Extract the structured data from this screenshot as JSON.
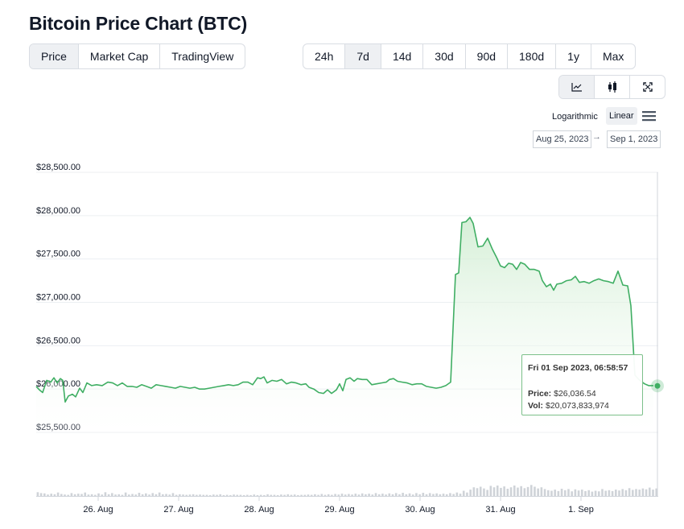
{
  "title": "Bitcoin Price Chart (BTC)",
  "data_tabs": [
    "Price",
    "Market Cap",
    "TradingView"
  ],
  "range_tabs": [
    "24h",
    "7d",
    "14d",
    "30d",
    "90d",
    "180d",
    "1y",
    "Max"
  ],
  "chart_type_buttons": [
    "line-chart-icon",
    "candlestick-icon",
    "fullscreen-icon"
  ],
  "scale": {
    "log_label": "Logarithmic",
    "linear_label": "Linear",
    "selected": "Linear"
  },
  "date_range": {
    "from": "Aug 25, 2023",
    "arrow": "→",
    "to": "Sep 1, 2023"
  },
  "tooltip": {
    "date": "Fri 01 Sep 2023, 06:58:57",
    "price_label": "Price:",
    "price_value": "$26,036.54",
    "vol_label": "Vol:",
    "vol_value": "$20,073,833,974"
  },
  "colors": {
    "line": "#3fae63",
    "fill_top": "#cdeccf",
    "accent_active": "#eef0f3"
  },
  "chart_data": {
    "type": "area",
    "title": "Bitcoin Price Chart (BTC)",
    "xlabel": "",
    "ylabel": "",
    "x_tick_labels": [
      "26. Aug",
      "27. Aug",
      "28. Aug",
      "29. Aug",
      "30. Aug",
      "31. Aug",
      "1. Sep"
    ],
    "y_tick_labels": [
      "$25,500.00",
      "$26,000.00",
      "$26,500.00",
      "$27,000.00",
      "$27,500.00",
      "$28,000.00",
      "$28,500.00"
    ],
    "ylim": [
      25500,
      28500
    ],
    "grid": true,
    "series": [
      {
        "values": [
          [
            25.23,
            26030
          ],
          [
            25.27,
            25990
          ],
          [
            25.31,
            25960
          ],
          [
            25.36,
            26100
          ],
          [
            25.41,
            26080
          ],
          [
            25.45,
            26130
          ],
          [
            25.49,
            26070
          ],
          [
            25.53,
            26120
          ],
          [
            25.56,
            26100
          ],
          [
            25.59,
            25850
          ],
          [
            25.63,
            25920
          ],
          [
            25.68,
            25940
          ],
          [
            25.72,
            25910
          ],
          [
            25.77,
            26010
          ],
          [
            25.81,
            25960
          ],
          [
            25.86,
            26070
          ],
          [
            25.92,
            26040
          ],
          [
            25.98,
            26050
          ],
          [
            26.05,
            26040
          ],
          [
            26.12,
            26080
          ],
          [
            26.18,
            26070
          ],
          [
            26.24,
            26040
          ],
          [
            26.3,
            26070
          ],
          [
            26.36,
            26030
          ],
          [
            26.42,
            26030
          ],
          [
            26.48,
            26020
          ],
          [
            26.54,
            26050
          ],
          [
            26.6,
            26030
          ],
          [
            26.66,
            26010
          ],
          [
            26.72,
            26050
          ],
          [
            26.78,
            26040
          ],
          [
            26.84,
            26030
          ],
          [
            26.9,
            26020
          ],
          [
            26.96,
            26010
          ],
          [
            27.02,
            26030
          ],
          [
            27.08,
            26020
          ],
          [
            27.14,
            26010
          ],
          [
            27.2,
            26020
          ],
          [
            27.26,
            26000
          ],
          [
            27.32,
            26000
          ],
          [
            27.38,
            26010
          ],
          [
            27.44,
            26020
          ],
          [
            27.5,
            26030
          ],
          [
            27.56,
            26040
          ],
          [
            27.62,
            26050
          ],
          [
            27.68,
            26040
          ],
          [
            27.74,
            26050
          ],
          [
            27.8,
            26080
          ],
          [
            27.86,
            26080
          ],
          [
            27.92,
            26050
          ],
          [
            27.98,
            26130
          ],
          [
            28.02,
            26120
          ],
          [
            28.06,
            26140
          ],
          [
            28.1,
            26070
          ],
          [
            28.16,
            26100
          ],
          [
            28.22,
            26090
          ],
          [
            28.28,
            26110
          ],
          [
            28.34,
            26060
          ],
          [
            28.4,
            26080
          ],
          [
            28.46,
            26070
          ],
          [
            28.52,
            26050
          ],
          [
            28.58,
            26060
          ],
          [
            28.62,
            26020
          ],
          [
            28.68,
            26000
          ],
          [
            28.74,
            25960
          ],
          [
            28.8,
            25950
          ],
          [
            28.85,
            25990
          ],
          [
            28.9,
            25950
          ],
          [
            28.96,
            25990
          ],
          [
            29.0,
            26060
          ],
          [
            29.04,
            25980
          ],
          [
            29.08,
            26110
          ],
          [
            29.13,
            26130
          ],
          [
            29.18,
            26090
          ],
          [
            29.22,
            26120
          ],
          [
            29.28,
            26110
          ],
          [
            29.34,
            26110
          ],
          [
            29.4,
            26050
          ],
          [
            29.46,
            26060
          ],
          [
            29.52,
            26070
          ],
          [
            29.58,
            26080
          ],
          [
            29.62,
            26110
          ],
          [
            29.67,
            26120
          ],
          [
            29.72,
            26090
          ],
          [
            29.78,
            26080
          ],
          [
            29.84,
            26070
          ],
          [
            29.9,
            26050
          ],
          [
            29.96,
            26060
          ],
          [
            30.02,
            26060
          ],
          [
            30.08,
            26030
          ],
          [
            30.14,
            26020
          ],
          [
            30.2,
            26010
          ],
          [
            30.26,
            26020
          ],
          [
            30.32,
            26040
          ],
          [
            30.38,
            26080
          ],
          [
            30.44,
            27320
          ],
          [
            30.48,
            27340
          ],
          [
            30.52,
            27920
          ],
          [
            30.57,
            27930
          ],
          [
            30.62,
            27980
          ],
          [
            30.66,
            27910
          ],
          [
            30.72,
            27640
          ],
          [
            30.78,
            27650
          ],
          [
            30.84,
            27740
          ],
          [
            30.9,
            27610
          ],
          [
            30.95,
            27520
          ],
          [
            31.0,
            27420
          ],
          [
            31.05,
            27400
          ],
          [
            31.1,
            27450
          ],
          [
            31.15,
            27440
          ],
          [
            31.2,
            27380
          ],
          [
            31.25,
            27460
          ],
          [
            31.3,
            27440
          ],
          [
            31.36,
            27380
          ],
          [
            31.42,
            27380
          ],
          [
            31.48,
            27360
          ],
          [
            31.52,
            27250
          ],
          [
            31.57,
            27180
          ],
          [
            31.62,
            27210
          ],
          [
            31.66,
            27140
          ],
          [
            31.7,
            27210
          ],
          [
            31.76,
            27220
          ],
          [
            31.82,
            27250
          ],
          [
            31.88,
            27260
          ],
          [
            31.93,
            27300
          ],
          [
            31.98,
            27230
          ],
          [
            32.04,
            27240
          ],
          [
            32.1,
            27220
          ],
          [
            32.16,
            27250
          ],
          [
            32.22,
            27270
          ],
          [
            32.28,
            27250
          ],
          [
            32.34,
            27240
          ],
          [
            32.4,
            27220
          ],
          [
            32.46,
            27360
          ],
          [
            32.52,
            27200
          ],
          [
            32.58,
            27190
          ],
          [
            32.62,
            26960
          ],
          [
            32.67,
            26160
          ],
          [
            32.73,
            26100
          ],
          [
            32.79,
            26060
          ],
          [
            32.84,
            26040
          ],
          [
            32.9,
            26040
          ]
        ]
      }
    ],
    "volume": [
      0.13,
      0.1,
      0.09,
      0.05,
      0.08,
      0.06,
      0.12,
      0.07,
      0.05,
      0.04,
      0.1,
      0.06,
      0.08,
      0.07,
      0.12,
      0.05,
      0.06,
      0.04,
      0.09,
      0.05,
      0.13,
      0.06,
      0.1,
      0.05,
      0.06,
      0.04,
      0.12,
      0.05,
      0.07,
      0.05,
      0.11,
      0.06,
      0.09,
      0.05,
      0.1,
      0.06,
      0.12,
      0.06,
      0.07,
      0.05,
      0.1,
      0.04,
      0.06,
      0.05,
      0.04,
      0.05,
      0.06,
      0.04,
      0.05,
      0.04,
      0.04,
      0.03,
      0.05,
      0.04,
      0.06,
      0.03,
      0.04,
      0.03,
      0.05,
      0.04,
      0.04,
      0.03,
      0.04,
      0.03,
      0.05,
      0.03,
      0.04,
      0.03,
      0.06,
      0.04,
      0.04,
      0.03,
      0.05,
      0.04,
      0.06,
      0.04,
      0.05,
      0.03,
      0.04,
      0.04,
      0.05,
      0.04,
      0.06,
      0.04,
      0.07,
      0.04,
      0.06,
      0.04,
      0.07,
      0.05,
      0.08,
      0.05,
      0.07,
      0.05,
      0.08,
      0.05,
      0.09,
      0.06,
      0.08,
      0.05,
      0.1,
      0.06,
      0.08,
      0.05,
      0.09,
      0.06,
      0.1,
      0.06,
      0.11,
      0.06,
      0.09,
      0.05,
      0.1,
      0.06,
      0.11,
      0.06,
      0.1,
      0.07,
      0.09,
      0.06,
      0.08,
      0.06,
      0.1,
      0.07,
      0.12,
      0.08,
      0.18,
      0.12,
      0.22,
      0.3,
      0.27,
      0.32,
      0.26,
      0.21,
      0.35,
      0.3,
      0.36,
      0.28,
      0.33,
      0.25,
      0.3,
      0.36,
      0.29,
      0.34,
      0.27,
      0.31,
      0.38,
      0.32,
      0.26,
      0.3,
      0.24,
      0.2,
      0.18,
      0.22,
      0.17,
      0.25,
      0.2,
      0.24,
      0.16,
      0.23,
      0.19,
      0.22,
      0.17,
      0.2,
      0.15,
      0.18,
      0.16,
      0.24,
      0.18,
      0.2,
      0.17,
      0.22,
      0.19,
      0.24,
      0.2,
      0.27,
      0.21,
      0.24,
      0.22,
      0.26,
      0.23,
      0.29,
      0.22,
      0.26
    ],
    "tooltip_point": {
      "x": 32.93,
      "y": 26036.54
    }
  }
}
